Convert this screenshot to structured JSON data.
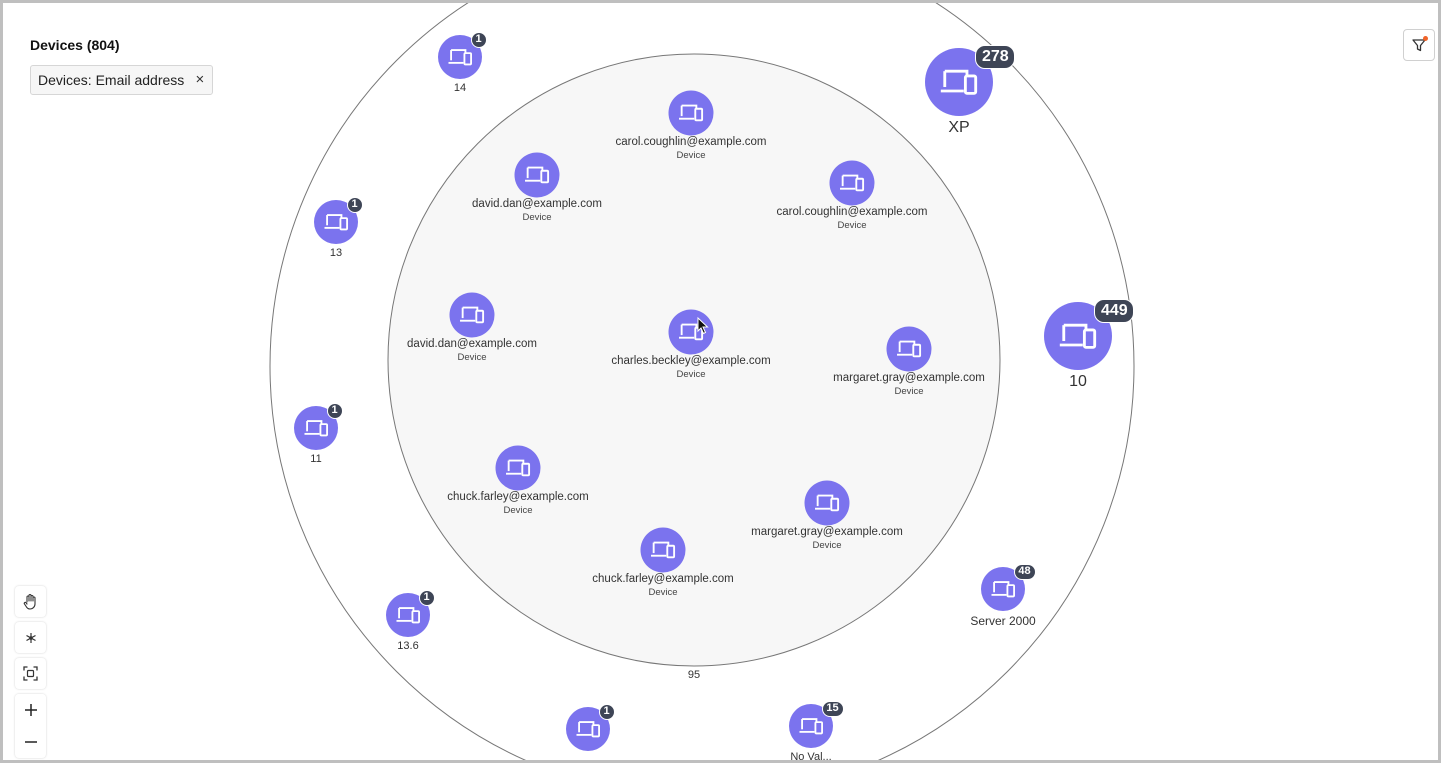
{
  "header": {
    "title": "Devices (804)"
  },
  "filter_chip": {
    "label": "Devices: Email address",
    "remove": "×"
  },
  "inner_cluster_label": "95",
  "inner_nodes": [
    {
      "email": "carol.coughlin@example.com",
      "type": "Device"
    },
    {
      "email": "david.dan@example.com",
      "type": "Device"
    },
    {
      "email": "carol.coughlin@example.com",
      "type": "Device"
    },
    {
      "email": "david.dan@example.com",
      "type": "Device"
    },
    {
      "email": "charles.beckley@example.com",
      "type": "Device"
    },
    {
      "email": "margaret.gray@example.com",
      "type": "Device"
    },
    {
      "email": "chuck.farley@example.com",
      "type": "Device"
    },
    {
      "email": "margaret.gray@example.com",
      "type": "Device"
    },
    {
      "email": "chuck.farley@example.com",
      "type": "Device"
    }
  ],
  "outer_nodes": [
    {
      "label": "14",
      "count": "1"
    },
    {
      "label": "13",
      "count": "1"
    },
    {
      "label": "11",
      "count": "1"
    },
    {
      "label": "13.6",
      "count": "1"
    },
    {
      "label": "",
      "count": "1"
    },
    {
      "label": "No Val...",
      "count": "15"
    },
    {
      "label": "Server 2000",
      "count": "48"
    },
    {
      "label": "XP",
      "count": "278"
    },
    {
      "label": "10",
      "count": "449"
    }
  ],
  "colors": {
    "node": "#7b73ee",
    "badge": "#3e4556",
    "inner_fill": "#f7f7f7",
    "ring": "#777777",
    "filter_dot": "#f0642a"
  },
  "icons": {
    "node": "laptop-phone-icon",
    "filter": "filter-icon",
    "pan": "hand-icon",
    "layout": "cluster-icon",
    "fit": "fit-screen-icon",
    "zoom_in": "plus-icon",
    "zoom_out": "minus-icon"
  }
}
